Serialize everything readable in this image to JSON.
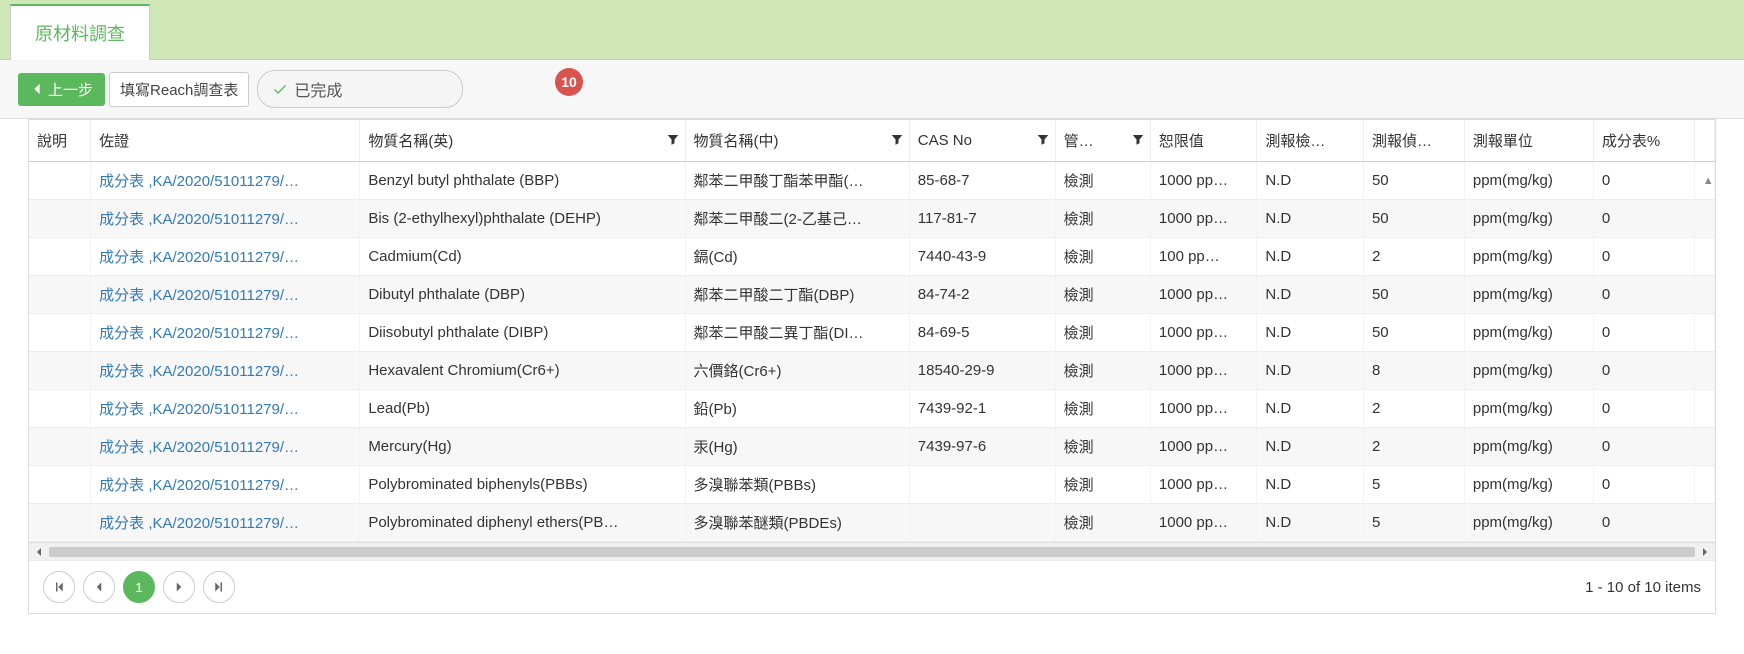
{
  "tab": {
    "title": "原材料調查"
  },
  "toolbar": {
    "back_label": "上一步",
    "info_label": "填寫Reach調查表",
    "done_label": "已完成",
    "badge": "10"
  },
  "columns": {
    "desc": "說明",
    "evidence": "佐證",
    "name_en": "物質名稱(英)",
    "name_zh": "物質名稱(中)",
    "cas": "CAS No",
    "reg": "管…",
    "limit": "恕限值",
    "detect": "測報檢…",
    "value": "測報偵…",
    "unit": "測報單位",
    "pct": "成分表%"
  },
  "rows": [
    {
      "evidence": "成分表 ,KA/2020/51011279/…",
      "name_en": "Benzyl butyl phthalate (BBP)",
      "name_zh": "鄰苯二甲酸丁酯苯甲酯(…",
      "cas": "85-68-7",
      "reg": "檢測",
      "limit": "1000 pp…",
      "detect": "N.D",
      "value": "50",
      "unit": "ppm(mg/kg)",
      "pct": "0"
    },
    {
      "evidence": "成分表 ,KA/2020/51011279/…",
      "name_en": "Bis (2-ethylhexyl)phthalate (DEHP)",
      "name_zh": "鄰苯二甲酸二(2-乙基己…",
      "cas": "117-81-7",
      "reg": "檢測",
      "limit": "1000 pp…",
      "detect": "N.D",
      "value": "50",
      "unit": "ppm(mg/kg)",
      "pct": "0"
    },
    {
      "evidence": "成分表 ,KA/2020/51011279/…",
      "name_en": "Cadmium(Cd)",
      "name_zh": "鎘(Cd)",
      "cas": "7440-43-9",
      "reg": "檢測",
      "limit": "100 pp…",
      "detect": "N.D",
      "value": "2",
      "unit": "ppm(mg/kg)",
      "pct": "0"
    },
    {
      "evidence": "成分表 ,KA/2020/51011279/…",
      "name_en": "Dibutyl phthalate (DBP)",
      "name_zh": "鄰苯二甲酸二丁酯(DBP)",
      "cas": "84-74-2",
      "reg": "檢測",
      "limit": "1000 pp…",
      "detect": "N.D",
      "value": "50",
      "unit": "ppm(mg/kg)",
      "pct": "0"
    },
    {
      "evidence": "成分表 ,KA/2020/51011279/…",
      "name_en": "Diisobutyl phthalate (DIBP)",
      "name_zh": "鄰苯二甲酸二異丁酯(DI…",
      "cas": "84-69-5",
      "reg": "檢測",
      "limit": "1000 pp…",
      "detect": "N.D",
      "value": "50",
      "unit": "ppm(mg/kg)",
      "pct": "0"
    },
    {
      "evidence": "成分表 ,KA/2020/51011279/…",
      "name_en": "Hexavalent Chromium(Cr6+)",
      "name_zh": "六價鉻(Cr6+)",
      "cas": "18540-29-9",
      "reg": "檢測",
      "limit": "1000 pp…",
      "detect": "N.D",
      "value": "8",
      "unit": "ppm(mg/kg)",
      "pct": "0"
    },
    {
      "evidence": "成分表 ,KA/2020/51011279/…",
      "name_en": "Lead(Pb)",
      "name_zh": "鉛(Pb)",
      "cas": "7439-92-1",
      "reg": "檢測",
      "limit": "1000 pp…",
      "detect": "N.D",
      "value": "2",
      "unit": "ppm(mg/kg)",
      "pct": "0"
    },
    {
      "evidence": "成分表 ,KA/2020/51011279/…",
      "name_en": "Mercury(Hg)",
      "name_zh": "汞(Hg)",
      "cas": "7439-97-6",
      "reg": "檢測",
      "limit": "1000 pp…",
      "detect": "N.D",
      "value": "2",
      "unit": "ppm(mg/kg)",
      "pct": "0"
    },
    {
      "evidence": "成分表 ,KA/2020/51011279/…",
      "name_en": "Polybrominated biphenyls(PBBs)",
      "name_zh": "多溴聯苯類(PBBs)",
      "cas": "",
      "reg": "檢測",
      "limit": "1000 pp…",
      "detect": "N.D",
      "value": "5",
      "unit": "ppm(mg/kg)",
      "pct": "0"
    },
    {
      "evidence": "成分表 ,KA/2020/51011279/…",
      "name_en": "Polybrominated diphenyl ethers(PB…",
      "name_zh": "多溴聯苯醚類(PBDEs)",
      "cas": "",
      "reg": "檢測",
      "limit": "1000 pp…",
      "detect": "N.D",
      "value": "5",
      "unit": "ppm(mg/kg)",
      "pct": "0"
    }
  ],
  "pager": {
    "current": "1",
    "info": "1 - 10 of 10 items"
  }
}
